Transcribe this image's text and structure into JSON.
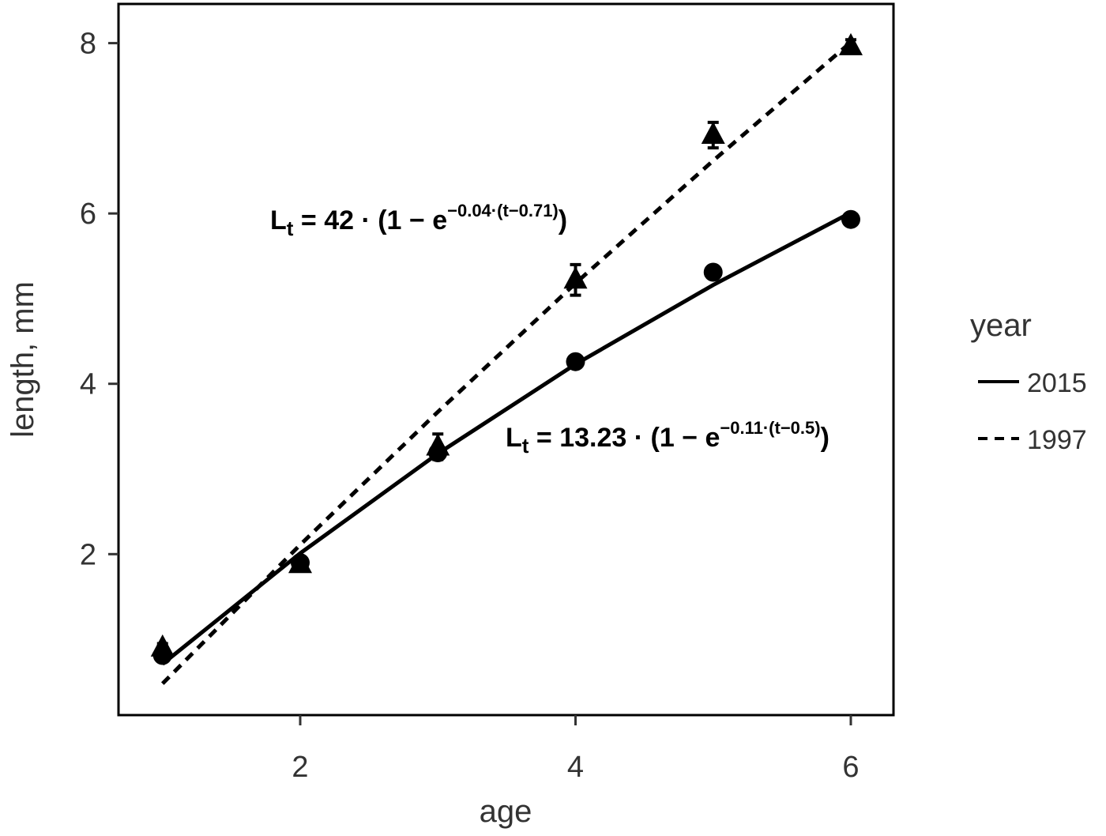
{
  "chart_data": {
    "type": "scatter",
    "x_label": "age",
    "y_label": "length, mm",
    "x": [
      1,
      2,
      3,
      4,
      5,
      6
    ],
    "series": [
      {
        "name": "2015",
        "color": "#000000",
        "marker": "circle",
        "line_style": "solid",
        "values": [
          0.81,
          1.9,
          3.19,
          4.26,
          5.31,
          5.93
        ],
        "fit": [
          0.71,
          2.01,
          3.18,
          4.23,
          5.16,
          6.01
        ]
      },
      {
        "name": "1997",
        "color": "#000000",
        "marker": "triangle",
        "line_style": "dashed",
        "values": [
          0.9,
          1.88,
          3.26,
          5.22,
          6.92,
          7.96
        ],
        "errors": [
          0.05,
          0.08,
          0.15,
          0.18,
          0.15,
          0.08
        ],
        "fit": [
          0.48,
          2.11,
          3.67,
          5.18,
          6.62,
          8.01
        ]
      }
    ],
    "annotations": [
      {
        "base": "L",
        "subscript": "t",
        "text": " = 42 · (1 − e",
        "exponent": "−0.04·(t−0.71)",
        "close": ")"
      },
      {
        "base": "L",
        "subscript": "t",
        "text": " = 13.23 · (1 − e",
        "exponent": "−0.11·(t−0.5)",
        "close": ")"
      }
    ],
    "legend_title": "year",
    "xlim": [
      0.68,
      6.31
    ],
    "ylim": [
      0.11,
      8.46
    ],
    "xticks": [
      2,
      4,
      6
    ],
    "yticks": [
      2,
      4,
      6,
      8
    ]
  }
}
